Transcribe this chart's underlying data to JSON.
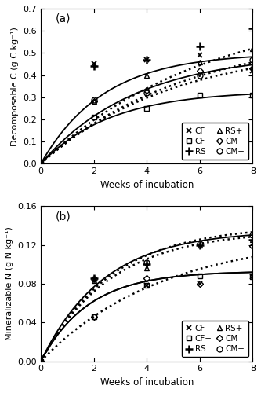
{
  "panel_a": {
    "title": "(a)",
    "ylabel": "Decomposable C (g C kg⁻¹)",
    "xlabel": "Weeks of incubation",
    "ylim": [
      0,
      0.7
    ],
    "yticks": [
      0.0,
      0.1,
      0.2,
      0.3,
      0.4,
      0.5,
      0.6,
      0.7
    ],
    "xlim": [
      0,
      8
    ],
    "xticks": [
      0,
      2,
      4,
      6,
      8
    ],
    "data_points": {
      "CF": {
        "x": [
          0,
          2,
          4,
          6,
          8
        ],
        "y": [
          0.0,
          0.45,
          0.47,
          0.49,
          0.42
        ]
      },
      "RS": {
        "x": [
          0,
          2,
          4,
          6,
          8
        ],
        "y": [
          0.0,
          0.44,
          0.47,
          0.53,
          0.61
        ]
      },
      "CM": {
        "x": [
          0,
          2,
          4,
          6,
          8
        ],
        "y": [
          0.0,
          0.28,
          0.33,
          0.42,
          0.43
        ]
      },
      "CF+": {
        "x": [
          0,
          2,
          4,
          6,
          8
        ],
        "y": [
          0.0,
          0.21,
          0.25,
          0.31,
          0.31
        ]
      },
      "RS+": {
        "x": [
          0,
          2,
          4,
          6,
          8
        ],
        "y": [
          0.0,
          0.28,
          0.4,
          0.46,
          0.52
        ]
      },
      "CM+": {
        "x": [
          0,
          2,
          4,
          6,
          8
        ],
        "y": [
          0.0,
          0.29,
          0.32,
          0.4,
          0.47
        ]
      }
    },
    "model_params": {
      "CF": {
        "C0": 0.5,
        "Kc": 0.42
      },
      "RS": {
        "C0": 0.72,
        "Kc": 0.16
      },
      "CM": {
        "C0": 0.5,
        "Kc": 0.28
      },
      "CF+": {
        "C0": 0.33,
        "Kc": 0.38
      },
      "RS+": {
        "C0": 0.6,
        "Kc": 0.18
      },
      "CM+": {
        "C0": 0.54,
        "Kc": 0.2
      }
    },
    "line_styles": {
      "CF": {
        "linestyle": "solid",
        "linewidth": 1.3
      },
      "RS": {
        "linestyle": "dotted",
        "linewidth": 1.8
      },
      "CM": {
        "linestyle": "solid",
        "linewidth": 1.3
      },
      "CF+": {
        "linestyle": "solid",
        "linewidth": 1.3
      },
      "RS+": {
        "linestyle": "dotted",
        "linewidth": 1.8
      },
      "CM+": {
        "linestyle": "dotted",
        "linewidth": 1.8
      }
    }
  },
  "panel_b": {
    "title": "(b)",
    "ylabel": "Mineralizable N (g N kg⁻¹)",
    "xlabel": "Weeks of incubation",
    "ylim": [
      0,
      0.16
    ],
    "yticks": [
      0.0,
      0.04,
      0.08,
      0.12,
      0.16
    ],
    "xlim": [
      0,
      8
    ],
    "xticks": [
      0,
      2,
      4,
      6,
      8
    ],
    "data_points": {
      "CF": {
        "x": [
          0,
          2,
          4,
          6,
          8
        ],
        "y": [
          0.0,
          0.085,
          0.078,
          0.08,
          0.087
        ]
      },
      "RS": {
        "x": [
          0,
          2,
          4,
          6,
          8
        ],
        "y": [
          0.0,
          0.086,
          0.1,
          0.12,
          0.125
        ]
      },
      "CM": {
        "x": [
          0,
          2,
          4,
          6,
          8
        ],
        "y": [
          0.0,
          0.046,
          0.086,
          0.08,
          0.119
        ]
      },
      "CF+": {
        "x": [
          0,
          2,
          4,
          6,
          8
        ],
        "y": [
          0.0,
          0.046,
          0.078,
          0.088,
          0.087
        ]
      },
      "RS+": {
        "x": [
          0,
          2,
          4,
          6,
          8
        ],
        "y": [
          0.0,
          0.083,
          0.096,
          0.12,
          0.125
        ]
      },
      "CM+": {
        "x": [
          0,
          2,
          4,
          6,
          8
        ],
        "y": [
          0.0,
          0.085,
          0.102,
          0.121,
          0.13
        ]
      }
    },
    "model_params": {
      "CF": {
        "C0": 0.093,
        "Kc": 0.55
      },
      "RS": {
        "C0": 0.135,
        "Kc": 0.42
      },
      "CM": {
        "C0": 0.13,
        "Kc": 0.22
      },
      "CF+": {
        "C0": 0.093,
        "Kc": 0.55
      },
      "RS+": {
        "C0": 0.135,
        "Kc": 0.38
      },
      "CM+": {
        "C0": 0.14,
        "Kc": 0.38
      }
    },
    "line_styles": {
      "CF": {
        "linestyle": "solid",
        "linewidth": 1.3
      },
      "RS": {
        "linestyle": "solid",
        "linewidth": 1.3
      },
      "CM": {
        "linestyle": "dotted",
        "linewidth": 1.8
      },
      "CF+": {
        "linestyle": "solid",
        "linewidth": 1.3
      },
      "RS+": {
        "linestyle": "dotted",
        "linewidth": 1.8
      },
      "CM+": {
        "linestyle": "dotted",
        "linewidth": 1.8
      }
    }
  },
  "marker_styles": {
    "CF": {
      "marker": "x",
      "markersize": 5,
      "markeredgewidth": 1.3,
      "markerfacecolor": "black"
    },
    "RS": {
      "marker": "+",
      "markersize": 7,
      "markeredgewidth": 1.8,
      "markerfacecolor": "black"
    },
    "CM": {
      "marker": "D",
      "markersize": 4,
      "markeredgewidth": 1.0,
      "markerfacecolor": "none"
    },
    "CF+": {
      "marker": "s",
      "markersize": 5,
      "markeredgewidth": 1.0,
      "markerfacecolor": "none"
    },
    "RS+": {
      "marker": "^",
      "markersize": 5,
      "markeredgewidth": 1.0,
      "markerfacecolor": "none"
    },
    "CM+": {
      "marker": "o",
      "markersize": 5,
      "markeredgewidth": 1.0,
      "markerfacecolor": "none"
    }
  },
  "legend_order_left": [
    "CF",
    "RS",
    "CM"
  ],
  "legend_order_right": [
    "CF+",
    "RS+",
    "CM+"
  ],
  "series_draw_order": [
    "CF+",
    "CM+",
    "RS+",
    "CF",
    "CM",
    "RS"
  ]
}
